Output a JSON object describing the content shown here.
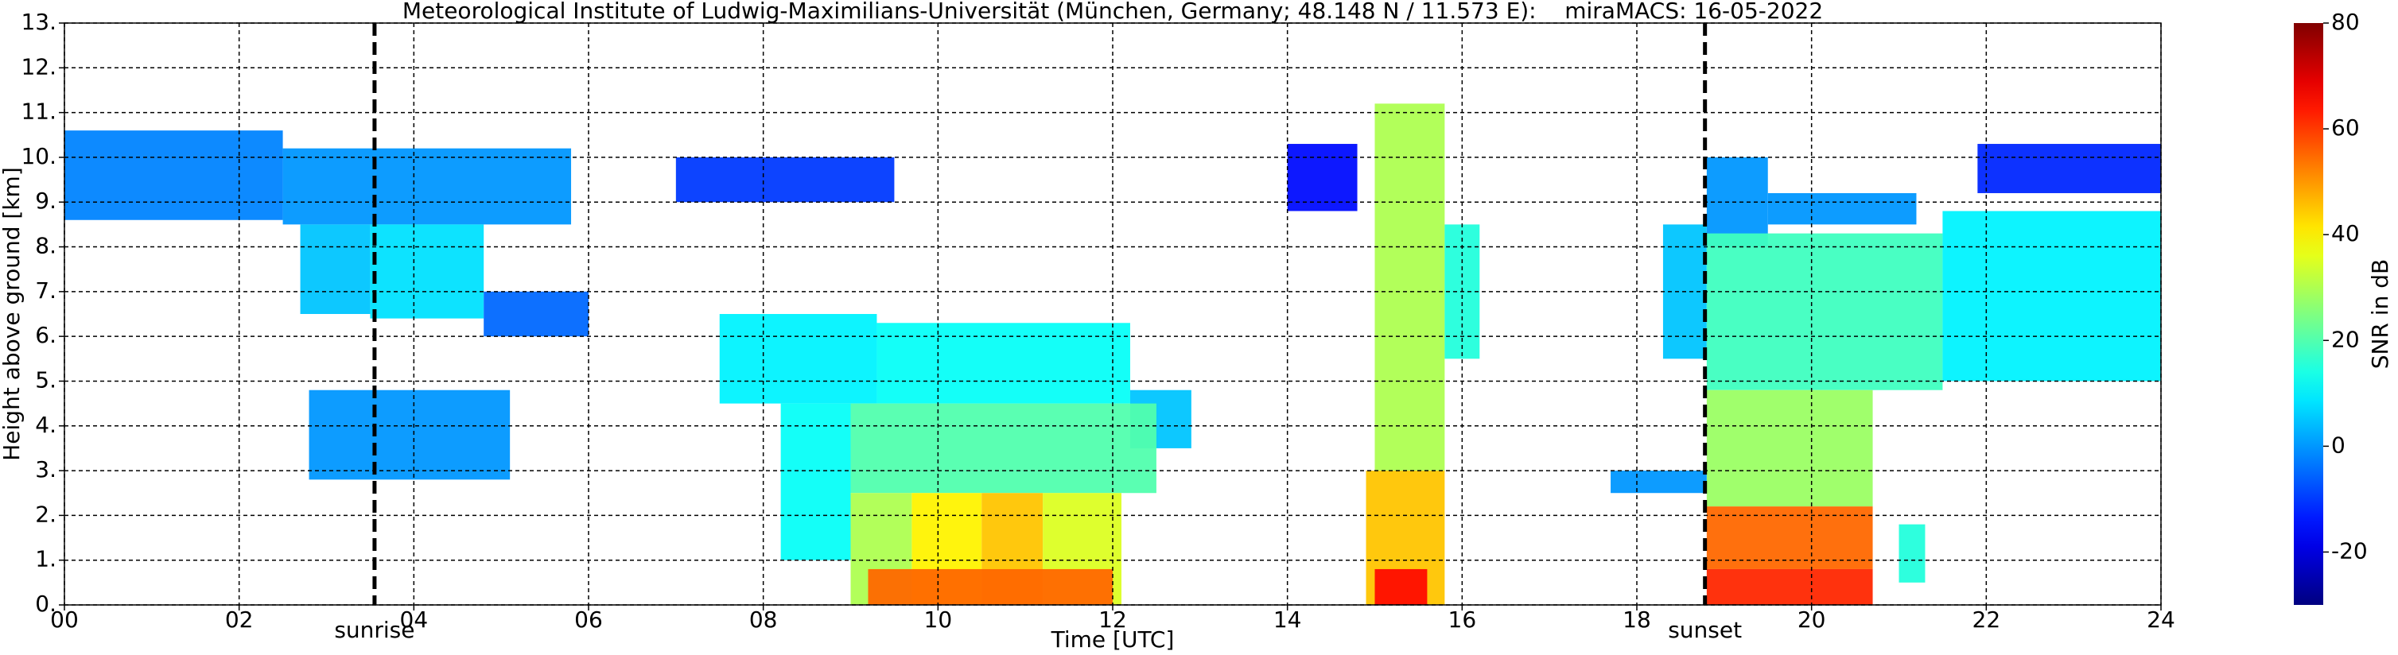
{
  "chart_data": {
    "type": "time-height",
    "title": "Meteorological Institute of Ludwig-Maximilians-Universität (München, Germany; 48.148 N / 11.573 E):    miraMACS: 16-05-2022",
    "x_label": "Time [UTC]",
    "y_label": "Height above ground [km]",
    "colorbar_label": "SNR in dB",
    "colormap": "jet",
    "grid": true,
    "xlim": [
      0,
      24
    ],
    "xticks": [
      {
        "value": 0,
        "label": "00"
      },
      {
        "value": 2,
        "label": "02"
      },
      {
        "value": 4,
        "label": "04"
      },
      {
        "value": 6,
        "label": "06"
      },
      {
        "value": 8,
        "label": "08"
      },
      10,
      12,
      14,
      16,
      18,
      20,
      22,
      24
    ],
    "ylim": [
      0,
      13
    ],
    "yticks": [
      {
        "value": 0,
        "label": "0."
      },
      {
        "value": 1,
        "label": "1."
      },
      {
        "value": 2,
        "label": "2."
      },
      {
        "value": 3,
        "label": "3."
      },
      {
        "value": 4,
        "label": "4."
      },
      {
        "value": 5,
        "label": "5."
      },
      {
        "value": 6,
        "label": "6."
      },
      {
        "value": 7,
        "label": "7."
      },
      {
        "value": 8,
        "label": "8."
      },
      {
        "value": 9,
        "label": "9."
      },
      {
        "value": 10,
        "label": "10."
      },
      {
        "value": 11,
        "label": "11."
      },
      {
        "value": 12,
        "label": "12."
      },
      {
        "value": 13,
        "label": "13."
      }
    ],
    "clim": [
      -30,
      80
    ],
    "cticks": [
      -20,
      0,
      20,
      40,
      60,
      80
    ],
    "annotations": [
      {
        "x": 3.55,
        "text": "sunrise"
      },
      {
        "x": 18.78,
        "text": "sunset"
      }
    ],
    "echoes": [
      {
        "start": 0,
        "end": 2.5,
        "bottom": 8.6,
        "top": 10.6,
        "snr": -2
      },
      {
        "start": 2.5,
        "end": 5.8,
        "bottom": 8.5,
        "top": 10.2,
        "snr": 0
      },
      {
        "start": 2.7,
        "end": 3.5,
        "bottom": 6.5,
        "top": 8.5,
        "snr": 5
      },
      {
        "start": 3.5,
        "end": 4.8,
        "bottom": 6.4,
        "top": 8.5,
        "snr": 8
      },
      {
        "start": 4.8,
        "end": 6.0,
        "bottom": 6.0,
        "top": 7.0,
        "snr": -5
      },
      {
        "start": 2.8,
        "end": 5.1,
        "bottom": 2.8,
        "top": 4.8,
        "snr": 0
      },
      {
        "start": 7.0,
        "end": 9.5,
        "bottom": 9.0,
        "top": 10.0,
        "snr": -10
      },
      {
        "start": 7.5,
        "end": 9.3,
        "bottom": 4.5,
        "top": 6.5,
        "snr": 10
      },
      {
        "start": 9.3,
        "end": 12.2,
        "bottom": 4.5,
        "top": 6.3,
        "snr": 12
      },
      {
        "start": 12.2,
        "end": 12.9,
        "bottom": 3.5,
        "top": 4.8,
        "snr": 5
      },
      {
        "start": 8.2,
        "end": 9.0,
        "bottom": 1.0,
        "top": 4.5,
        "snr": 12
      },
      {
        "start": 9.0,
        "end": 12.5,
        "bottom": 2.5,
        "top": 4.5,
        "snr": 20
      },
      {
        "start": 9.0,
        "end": 9.7,
        "bottom": 0,
        "top": 2.5,
        "snr": 30
      },
      {
        "start": 9.7,
        "end": 10.5,
        "bottom": 0,
        "top": 2.5,
        "snr": 40
      },
      {
        "start": 10.5,
        "end": 11.2,
        "bottom": 0,
        "top": 2.5,
        "snr": 45
      },
      {
        "start": 11.2,
        "end": 12.1,
        "bottom": 0,
        "top": 2.5,
        "snr": 35
      },
      {
        "start": 9.2,
        "end": 12.0,
        "bottom": 0,
        "top": 0.8,
        "snr": 55
      },
      {
        "start": 14.0,
        "end": 14.8,
        "bottom": 8.8,
        "top": 10.3,
        "snr": -15
      },
      {
        "start": 15.0,
        "end": 15.8,
        "bottom": 3.0,
        "top": 11.2,
        "snr": 30
      },
      {
        "start": 14.9,
        "end": 15.8,
        "bottom": 0,
        "top": 3.0,
        "snr": 45
      },
      {
        "start": 15.0,
        "end": 15.6,
        "bottom": 0,
        "top": 0.8,
        "snr": 65
      },
      {
        "start": 15.8,
        "end": 16.2,
        "bottom": 5.5,
        "top": 8.5,
        "snr": 15
      },
      {
        "start": 18.3,
        "end": 18.8,
        "bottom": 5.5,
        "top": 8.5,
        "snr": 5
      },
      {
        "start": 18.8,
        "end": 19.5,
        "bottom": 8.0,
        "top": 10.0,
        "snr": 0
      },
      {
        "start": 18.8,
        "end": 21.5,
        "bottom": 4.8,
        "top": 8.3,
        "snr": 18
      },
      {
        "start": 21.5,
        "end": 24,
        "bottom": 5.0,
        "top": 8.8,
        "snr": 10
      },
      {
        "start": 19.5,
        "end": 21.2,
        "bottom": 8.5,
        "top": 9.2,
        "snr": 0
      },
      {
        "start": 21.9,
        "end": 24,
        "bottom": 9.2,
        "top": 10.3,
        "snr": -12
      },
      {
        "start": 18.8,
        "end": 20.7,
        "bottom": 2.2,
        "top": 4.8,
        "snr": 28
      },
      {
        "start": 18.8,
        "end": 20.7,
        "bottom": 0.8,
        "top": 2.2,
        "snr": 55
      },
      {
        "start": 18.8,
        "end": 20.7,
        "bottom": 0,
        "top": 0.8,
        "snr": 62
      },
      {
        "start": 17.7,
        "end": 18.8,
        "bottom": 2.5,
        "top": 3.0,
        "snr": 0
      },
      {
        "start": 21.0,
        "end": 21.3,
        "bottom": 0.5,
        "top": 1.8,
        "snr": 15
      }
    ]
  }
}
